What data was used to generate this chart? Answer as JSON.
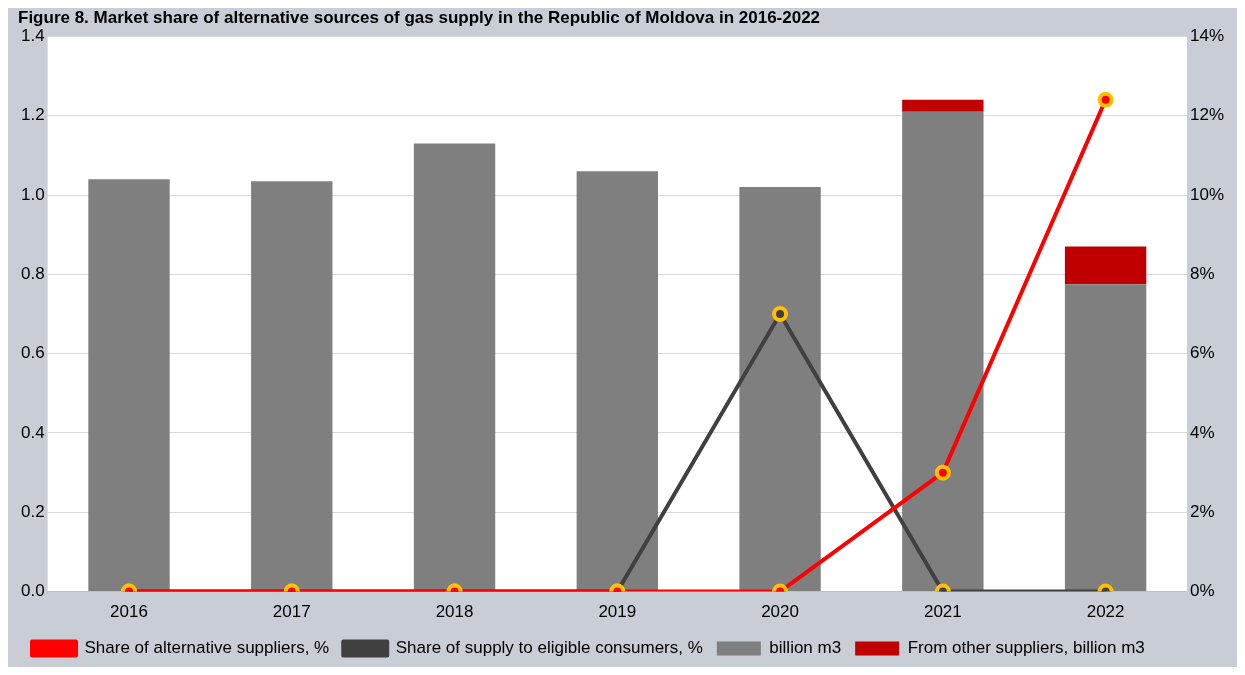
{
  "chart_data": {
    "type": "bar",
    "title": "Figure 8. Market share of alternative sources of gas supply in the Republic of Moldova in 2016-2022",
    "categories": [
      "2016",
      "2017",
      "2018",
      "2019",
      "2020",
      "2021",
      "2022"
    ],
    "stacked": true,
    "series": [
      {
        "name": "billion m3",
        "color": "#7f7f7f",
        "values": [
          1.04,
          1.035,
          1.13,
          1.06,
          1.02,
          1.21,
          0.775
        ]
      },
      {
        "name": "From other suppliers, billion m3",
        "color": "#c00000",
        "values": [
          0,
          0,
          0,
          0,
          0,
          0.03,
          0.095
        ]
      },
      {
        "name": "Share of alternative suppliers, %",
        "type": "line",
        "axis": "y2",
        "color": "#ff0000",
        "values": [
          0,
          0,
          0,
          0,
          0,
          3,
          12.4
        ]
      },
      {
        "name": "Share of supply to eligible consumers, %",
        "type": "line",
        "axis": "y2",
        "color": "#404040",
        "values": [
          0,
          0,
          0,
          0,
          7,
          0,
          0
        ]
      }
    ],
    "ylim": [
      0,
      1.4
    ],
    "yticks": [
      {
        "value": 0,
        "label": "0.0"
      },
      0.2,
      0.4,
      0.6,
      0.8,
      {
        "value": 1,
        "label": "1.0"
      },
      1.2,
      1.4
    ],
    "y2lim": [
      0,
      14
    ],
    "y2ticks": [
      {
        "value": 0,
        "label": "0%"
      },
      {
        "value": 2,
        "label": "2%"
      },
      {
        "value": 4,
        "label": "4%"
      },
      {
        "value": 6,
        "label": "6%"
      },
      {
        "value": 8,
        "label": "8%"
      },
      {
        "value": 10,
        "label": "10%"
      },
      {
        "value": 12,
        "label": "12%"
      },
      {
        "value": 14,
        "label": "14%"
      }
    ],
    "grid": "y",
    "legend": "bottom",
    "marker": "circle"
  }
}
